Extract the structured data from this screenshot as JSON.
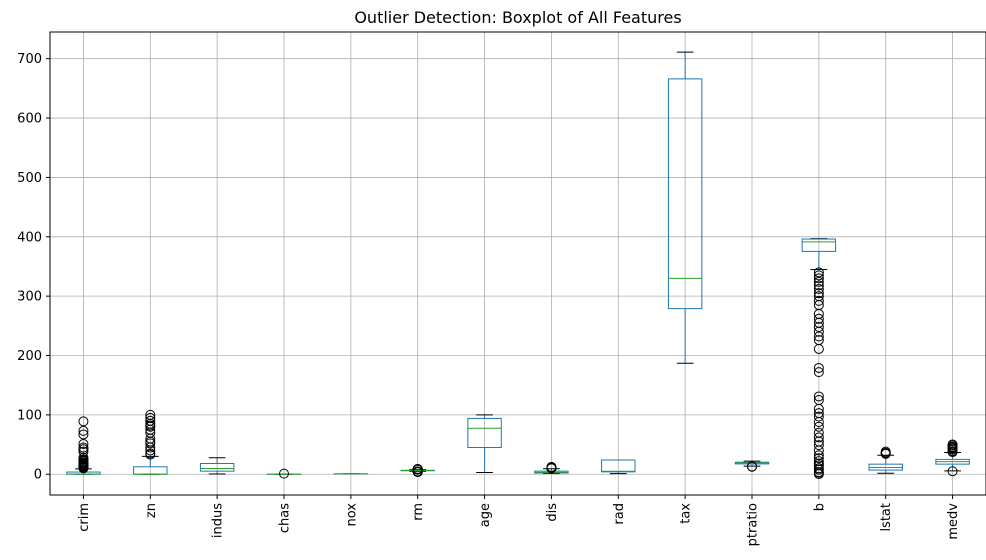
{
  "chart_data": {
    "type": "boxplot",
    "title": "Outlier Detection: Boxplot of All Features",
    "xlabel": "",
    "ylabel": "",
    "ylim": [
      -35,
      745
    ],
    "yticks": [
      0,
      100,
      200,
      300,
      400,
      500,
      600,
      700
    ],
    "grid": true,
    "legend": "none",
    "colors": {
      "box": "#1f77b4",
      "median": "#2ca02c",
      "whisker": "#000000",
      "flier": "#000000"
    },
    "categories": [
      "crim",
      "zn",
      "indus",
      "chas",
      "nox",
      "rm",
      "age",
      "dis",
      "rad",
      "tax",
      "ptratio",
      "b",
      "lstat",
      "medv"
    ],
    "boxes": [
      {
        "name": "crim",
        "whislo": 0.006,
        "q1": 0.08,
        "med": 0.26,
        "q3": 3.68,
        "whishi": 9.0,
        "fliers": [
          10,
          11,
          12,
          13,
          14,
          15,
          16,
          17,
          18,
          19,
          20,
          22,
          24,
          25,
          28,
          38,
          42,
          45,
          51,
          67,
          73,
          89
        ]
      },
      {
        "name": "zn",
        "whislo": 0,
        "q1": 0,
        "med": 0,
        "q3": 12.5,
        "whishi": 30,
        "fliers": [
          33,
          35,
          40,
          45,
          52,
          55,
          60,
          70,
          75,
          80,
          82,
          85,
          90,
          95,
          100
        ]
      },
      {
        "name": "indus",
        "whislo": 0.46,
        "q1": 5.19,
        "med": 9.69,
        "q3": 18.1,
        "whishi": 27.74,
        "fliers": []
      },
      {
        "name": "chas",
        "whislo": 0,
        "q1": 0,
        "med": 0,
        "q3": 0,
        "whishi": 0,
        "fliers": [
          1
        ]
      },
      {
        "name": "nox",
        "whislo": 0.385,
        "q1": 0.449,
        "med": 0.538,
        "q3": 0.624,
        "whishi": 0.871,
        "fliers": []
      },
      {
        "name": "rm",
        "whislo": 4.88,
        "q1": 5.89,
        "med": 6.21,
        "q3": 6.62,
        "whishi": 7.69,
        "fliers": [
          3.56,
          3.86,
          4.14,
          4.37,
          4.52,
          7.82,
          8.03,
          8.25,
          8.38,
          8.7,
          8.78
        ]
      },
      {
        "name": "age",
        "whislo": 2.9,
        "q1": 45,
        "med": 77.5,
        "q3": 94,
        "whishi": 100,
        "fliers": []
      },
      {
        "name": "dis",
        "whislo": 1.13,
        "q1": 2.1,
        "med": 3.21,
        "q3": 5.19,
        "whishi": 9.22,
        "fliers": [
          9.9,
          10.6,
          10.7,
          12.1,
          12.13
        ]
      },
      {
        "name": "rad",
        "whislo": 1,
        "q1": 4,
        "med": 5,
        "q3": 24,
        "whishi": 24,
        "fliers": []
      },
      {
        "name": "tax",
        "whislo": 187,
        "q1": 279,
        "med": 330,
        "q3": 666,
        "whishi": 711,
        "fliers": []
      },
      {
        "name": "ptratio",
        "whislo": 13.6,
        "q1": 17.4,
        "med": 19.05,
        "q3": 20.2,
        "whishi": 22,
        "fliers": [
          12.6,
          13.0
        ]
      },
      {
        "name": "b",
        "whislo": 344.9,
        "q1": 375.4,
        "med": 391.4,
        "q3": 396.2,
        "whishi": 396.9,
        "fliers": [
          0.3,
          2.6,
          3.5,
          7.7,
          10,
          15,
          18,
          22,
          27,
          32,
          40,
          49,
          55,
          62,
          70,
          80,
          88,
          97,
          103,
          110,
          125,
          131,
          172,
          179,
          211,
          226,
          232,
          240,
          248,
          255,
          262,
          270,
          285,
          292,
          300,
          305,
          312,
          318,
          324,
          330,
          335,
          340
        ]
      },
      {
        "name": "lstat",
        "whislo": 1.73,
        "q1": 6.95,
        "med": 11.36,
        "q3": 16.96,
        "whishi": 31.99,
        "fliers": [
          34.4,
          34.8,
          36.0,
          37.97
        ]
      },
      {
        "name": "medv",
        "whislo": 5.6,
        "q1": 17.0,
        "med": 21.2,
        "q3": 25.0,
        "whishi": 36.5,
        "fliers": [
          5.0,
          37.2,
          38.7,
          41.3,
          43.1,
          44.8,
          46.0,
          48.3,
          50.0
        ]
      }
    ]
  }
}
